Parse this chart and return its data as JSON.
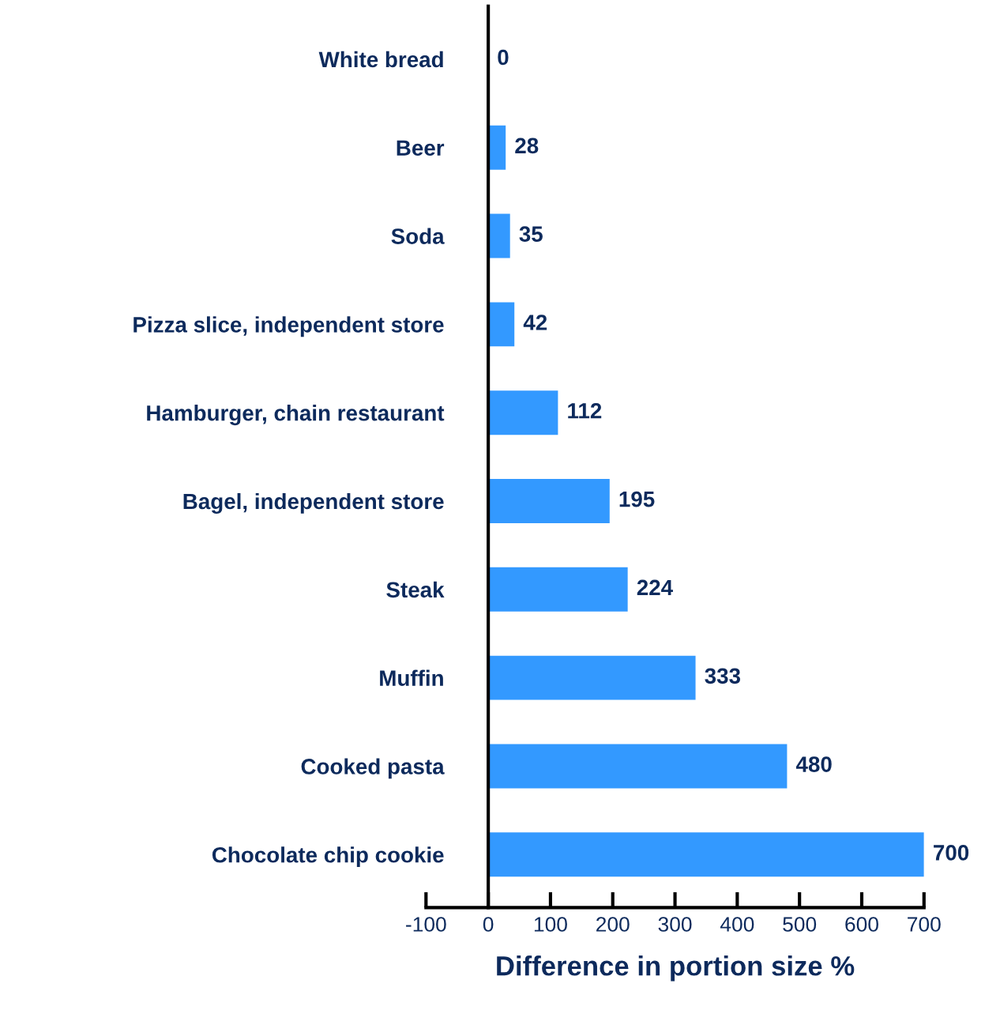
{
  "chart_data": {
    "type": "bar",
    "orientation": "horizontal",
    "xlabel": "Difference in portion size %",
    "categories": [
      "White bread",
      "Beer",
      "Soda",
      "Pizza slice, independent store",
      "Hamburger, chain restaurant",
      "Bagel, independent store",
      "Steak",
      "Muffin",
      "Cooked pasta",
      "Chocolate chip cookie"
    ],
    "values": [
      0,
      28,
      35,
      42,
      112,
      195,
      224,
      333,
      480,
      700
    ],
    "color": "#3399ff",
    "xlim": [
      -100,
      700
    ],
    "xticks": [
      -100,
      0,
      100,
      200,
      300,
      400,
      500,
      600,
      700
    ],
    "data_labels": true,
    "grid": false,
    "legend": false
  }
}
